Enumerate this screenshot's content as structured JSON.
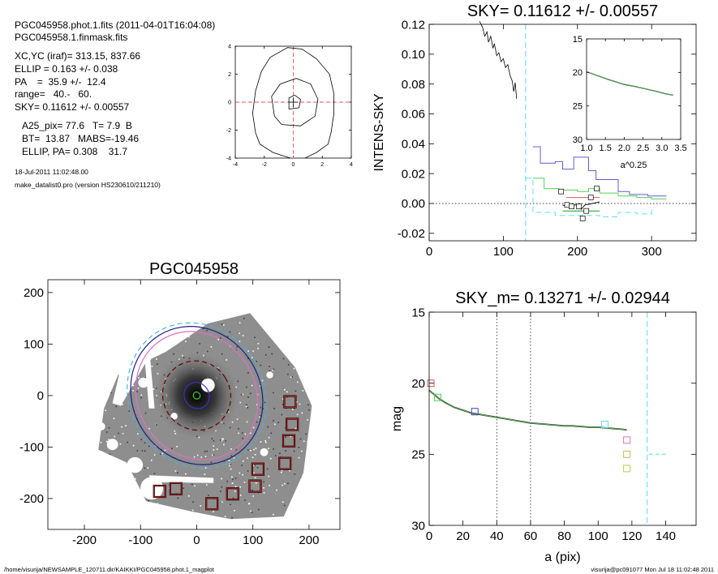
{
  "header": {
    "lines": [
      "PGC045958.phot.1.fits  (2011-04-01T16:04:08)",
      "PGC045958.1.finmask.fits",
      "XC,YC (iraf)=   313.15, 837.66",
      "ELLIP = 0.163 +/- 0.038",
      "PA    =  35.9 +/-  12.4",
      "range=   40.-   60.",
      "SKY= 0.11612 +/- 0.00557",
      "A25_pix= 77.6   T= 7.9  B",
      "BT=  13.87   MABS=-19.46",
      "ELLIP, PA= 0.308    31.7",
      "18-Jul-2011 11:02:48.00",
      "make_datalist0.pro (version HS230610/211210)"
    ]
  },
  "footer": {
    "left": "/home/visurija/NEWSAMPLE_120711.dir/KAIKKI/PGC045958.phot.1_magplot",
    "right": "visurija@pc091077  Mon Jul 18 11:02:48 2011"
  },
  "chart_data": [
    {
      "id": "contour",
      "type": "line",
      "title": "",
      "xlabel": "",
      "ylabel": "",
      "xlim": [
        -4,
        4
      ],
      "ylim": [
        -4,
        4
      ],
      "xticks": [
        -4,
        -2,
        0,
        2,
        4
      ],
      "yticks": [
        -4,
        -2,
        0,
        2,
        4
      ],
      "contours": [
        [
          [
            -0.3,
            -0.5
          ],
          [
            0.4,
            -0.4
          ],
          [
            0.5,
            0.2
          ],
          [
            0.1,
            0.5
          ],
          [
            -0.3,
            0.3
          ],
          [
            -0.3,
            -0.5
          ]
        ],
        [
          [
            -1.3,
            -1.0
          ],
          [
            -0.8,
            -1.6
          ],
          [
            0.5,
            -1.7
          ],
          [
            1.5,
            -1.0
          ],
          [
            1.7,
            0.2
          ],
          [
            1.2,
            1.3
          ],
          [
            0.2,
            1.7
          ],
          [
            -0.9,
            1.3
          ],
          [
            -1.5,
            0.4
          ],
          [
            -1.3,
            -1.0
          ]
        ],
        [
          [
            -2.6,
            -2.2
          ],
          [
            -2.3,
            -3.0
          ],
          [
            -1.4,
            -3.6
          ],
          [
            -0.2,
            -4.0
          ]
        ],
        [
          [
            2.6,
            -2.2
          ],
          [
            2.4,
            -3.0
          ],
          [
            1.6,
            -3.6
          ],
          [
            0.8,
            -4.0
          ]
        ],
        [
          [
            -2.6,
            -2.2
          ],
          [
            -2.8,
            -0.8
          ],
          [
            -2.6,
            0.8
          ],
          [
            -2.2,
            2.2
          ],
          [
            -1.6,
            3.2
          ],
          [
            -0.4,
            3.9
          ],
          [
            0.6,
            3.8
          ],
          [
            1.6,
            3.1
          ],
          [
            2.5,
            2.0
          ],
          [
            2.8,
            0.6
          ],
          [
            2.8,
            -0.8
          ],
          [
            2.6,
            -2.2
          ]
        ]
      ],
      "center": [
        0,
        0
      ]
    },
    {
      "id": "sky",
      "type": "line",
      "title": "SKY= 0.11612 +/- 0.00557",
      "xlabel": "",
      "ylabel": "INTENS-SKY",
      "xlim": [
        0,
        360
      ],
      "ylim": [
        -0.025,
        0.12
      ],
      "xticks": [
        0,
        100,
        200,
        300
      ],
      "yticks": [
        -0.02,
        0.0,
        0.02,
        0.04,
        0.06,
        0.08,
        0.1,
        0.12
      ],
      "ytick_labels": [
        "-0.02",
        "0.00",
        "0.02",
        "0.04",
        "0.06",
        "0.08",
        "0.10",
        "0.12"
      ],
      "vline_x": 130,
      "hline_y": 0,
      "profile": [
        [
          68,
          0.122
        ],
        [
          72,
          0.118
        ],
        [
          75,
          0.112
        ],
        [
          78,
          0.115
        ],
        [
          80,
          0.108
        ],
        [
          83,
          0.112
        ],
        [
          86,
          0.104
        ],
        [
          88,
          0.107
        ],
        [
          91,
          0.099
        ],
        [
          94,
          0.101
        ],
        [
          97,
          0.095
        ],
        [
          100,
          0.097
        ],
        [
          103,
          0.091
        ],
        [
          106,
          0.093
        ],
        [
          109,
          0.086
        ],
        [
          112,
          0.082
        ],
        [
          114,
          0.075
        ],
        [
          116,
          0.081
        ],
        [
          118,
          0.07
        ]
      ],
      "series": [
        {
          "name": "",
          "color": "#5f5fd0",
          "steps": [
            [
              140,
              0.038
            ],
            [
              150,
              0.027
            ],
            [
              170,
              0.028
            ],
            [
              180,
              0.023
            ],
            [
              195,
              0.031
            ],
            [
              215,
              0.022
            ],
            [
              225,
              0.016
            ],
            [
              255,
              0.008
            ],
            [
              270,
              0.006
            ],
            [
              295,
              0.005
            ],
            [
              315,
              0.005
            ],
            [
              320,
              0.005
            ]
          ]
        },
        {
          "name": "",
          "color": "#55d055",
          "steps": [
            [
              140,
              0.017
            ],
            [
              155,
              0.01
            ],
            [
              175,
              0.009
            ],
            [
              200,
              0.008
            ],
            [
              215,
              0.01
            ],
            [
              230,
              0.007
            ],
            [
              255,
              0.005
            ],
            [
              280,
              0.004
            ],
            [
              300,
              0.003
            ],
            [
              320,
              0.003
            ]
          ]
        },
        {
          "name": "",
          "color": "#e05555",
          "steps": [
            [
              185,
              0.004
            ],
            [
              230,
              0.004
            ]
          ]
        },
        {
          "name": "",
          "color": "#1a9a1a",
          "steps": [
            [
              180,
              -0.005
            ],
            [
              230,
              -0.005
            ]
          ]
        },
        {
          "name": "",
          "color": "#66e0ee",
          "dashed": true,
          "steps": [
            [
              130,
              0.017
            ],
            [
              140,
              -0.006
            ],
            [
              170,
              -0.008
            ],
            [
              200,
              -0.008
            ],
            [
              230,
              -0.009
            ],
            [
              255,
              -0.006
            ],
            [
              280,
              -0.007
            ],
            [
              300,
              -0.004
            ]
          ]
        }
      ],
      "black_line": [
        [
          180,
          -0.001
        ],
        [
          185,
          -0.002
        ],
        [
          190,
          -0.001
        ],
        [
          200,
          -0.001
        ],
        [
          205,
          -0.004
        ],
        [
          210,
          -0.001
        ],
        [
          220,
          0.0
        ],
        [
          230,
          0.001
        ]
      ],
      "squares": [
        [
          178,
          0.008
        ],
        [
          186,
          -0.001
        ],
        [
          192,
          -0.002
        ],
        [
          202,
          -0.002
        ],
        [
          207,
          -0.01
        ],
        [
          212,
          -0.005
        ],
        [
          218,
          0.004
        ],
        [
          226,
          0.01
        ]
      ],
      "inset": {
        "xlabel": "a^0.25",
        "xlim": [
          1.0,
          3.5
        ],
        "ylim": [
          15,
          30
        ],
        "xticks": [
          1.0,
          1.5,
          2.0,
          2.5,
          3.0,
          3.5
        ],
        "xtick_labels": [
          "1.0",
          "1.5",
          "2.0",
          "2.5",
          "3.0",
          "3.5"
        ],
        "yticks": [
          15,
          20,
          25,
          30
        ],
        "line": [
          [
            1.0,
            19.9
          ],
          [
            1.3,
            20.5
          ],
          [
            1.6,
            21.1
          ],
          [
            2.0,
            21.8
          ],
          [
            2.3,
            22.1
          ],
          [
            2.6,
            22.5
          ],
          [
            2.9,
            22.9
          ],
          [
            3.1,
            23.2
          ],
          [
            3.3,
            23.4
          ]
        ]
      }
    },
    {
      "id": "image",
      "type": "scatter",
      "title": "PGC045958",
      "xlabel": "",
      "ylabel": "",
      "xlim": [
        -265,
        255
      ],
      "ylim": [
        -260,
        225
      ],
      "xticks": [
        -200,
        -100,
        0,
        100,
        200
      ],
      "yticks": [
        -200,
        -100,
        0,
        100,
        200
      ],
      "galaxy_center": [
        0,
        0
      ],
      "marked_boxes": [
        [
          166,
          -12
        ],
        [
          170,
          -56
        ],
        [
          164,
          -88
        ],
        [
          157,
          -132
        ],
        [
          109,
          -143
        ],
        [
          104,
          -176
        ],
        [
          64,
          -191
        ],
        [
          27,
          -210
        ],
        [
          -37,
          -181
        ],
        [
          -66,
          -186
        ]
      ],
      "ellipses": [
        {
          "cx": 0,
          "cy": 0,
          "rx": 120,
          "ry": 145,
          "angle": -32,
          "color": "#44b8c8",
          "dashed": true
        },
        {
          "cx": 0,
          "cy": 0,
          "rx": 114,
          "ry": 138,
          "angle": -32,
          "color": "#1d1d8a",
          "dashed": false
        },
        {
          "cx": 0,
          "cy": 0,
          "rx": 105,
          "ry": 128,
          "angle": -32,
          "color": "#e070c0",
          "dashed": false
        },
        {
          "cx": 0,
          "cy": 0,
          "rx": 60,
          "ry": 68,
          "angle": -32,
          "color": "#6b0000",
          "dashed": true
        },
        {
          "cx": 0,
          "cy": 0,
          "rx": 22,
          "ry": 26,
          "angle": -32,
          "color": "#3434c8",
          "dashed": false
        },
        {
          "cx": 0,
          "cy": 0,
          "rx": 6,
          "ry": 7,
          "angle": -32,
          "color": "#3ad03a",
          "dashed": false
        }
      ]
    },
    {
      "id": "mag",
      "type": "line",
      "title": "SKY_m=  0.13271 +/- 0.02944",
      "xlabel": "a (pix)",
      "ylabel": "mag",
      "xlim": [
        0,
        158
      ],
      "ylim": [
        30,
        15
      ],
      "xticks": [
        0,
        20,
        40,
        60,
        80,
        100,
        120,
        140
      ],
      "yticks": [
        15,
        20,
        25,
        30
      ],
      "vlines_dotted": [
        40,
        60
      ],
      "vline_dashed": 129,
      "profile": [
        [
          0,
          20.5
        ],
        [
          3,
          20.8
        ],
        [
          6,
          21.1
        ],
        [
          10,
          21.4
        ],
        [
          15,
          21.7
        ],
        [
          20,
          21.9
        ],
        [
          25,
          22.1
        ],
        [
          30,
          22.2
        ],
        [
          35,
          22.3
        ],
        [
          40,
          22.4
        ],
        [
          45,
          22.5
        ],
        [
          50,
          22.6
        ],
        [
          55,
          22.7
        ],
        [
          60,
          22.8
        ],
        [
          65,
          22.85
        ],
        [
          70,
          22.9
        ],
        [
          75,
          22.95
        ],
        [
          80,
          23.0
        ],
        [
          85,
          23.0
        ],
        [
          90,
          23.05
        ],
        [
          95,
          23.1
        ],
        [
          100,
          23.1
        ],
        [
          105,
          23.15
        ],
        [
          110,
          23.2
        ],
        [
          115,
          23.25
        ],
        [
          117,
          23.3
        ]
      ],
      "sky_level": [
        [
          130,
          25.0
        ],
        [
          141,
          25.0
        ]
      ],
      "markers": [
        {
          "x": 1,
          "y": 20.0,
          "color": "#e05555"
        },
        {
          "x": 5,
          "y": 21.0,
          "color": "#55c855"
        },
        {
          "x": 27,
          "y": 22.0,
          "color": "#4040c0"
        },
        {
          "x": 104,
          "y": 22.9,
          "color": "#66d8e8"
        },
        {
          "x": 117,
          "y": 24.0,
          "color": "#e070c0"
        },
        {
          "x": 117,
          "y": 25.0,
          "color": "#d8b060"
        },
        {
          "x": 117,
          "y": 26.0,
          "color": "#c8c840"
        }
      ]
    }
  ]
}
